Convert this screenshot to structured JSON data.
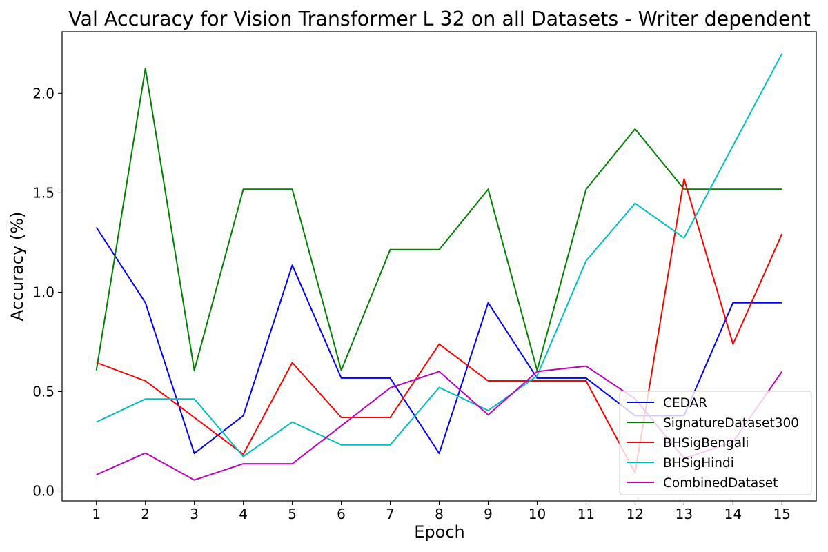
{
  "chart_data": {
    "type": "line",
    "title": "Val Accuracy for Vision Transformer L 32 on all Datasets - Writer dependent",
    "xlabel": "Epoch",
    "ylabel": "Accuracy (%)",
    "x": [
      1,
      2,
      3,
      4,
      5,
      6,
      7,
      8,
      9,
      10,
      11,
      12,
      13,
      14,
      15
    ],
    "xlim": [
      0.3,
      15.7
    ],
    "ylim": [
      -0.05,
      2.31
    ],
    "yticks": [
      0.0,
      0.5,
      1.0,
      1.5,
      2.0
    ],
    "ytick_labels": [
      "0.0",
      "0.5",
      "1.0",
      "1.5",
      "2.0"
    ],
    "xtick_labels": [
      "1",
      "2",
      "3",
      "4",
      "5",
      "6",
      "7",
      "8",
      "9",
      "10",
      "11",
      "12",
      "13",
      "14",
      "15"
    ],
    "grid": false,
    "legend_position": "bottom-right",
    "series": [
      {
        "name": "CEDAR",
        "color": "#0000ff",
        "values": [
          1.326,
          0.947,
          0.189,
          0.379,
          1.136,
          0.568,
          0.568,
          0.189,
          0.947,
          0.568,
          0.568,
          0.379,
          0.379,
          0.947,
          0.947
        ]
      },
      {
        "name": "SignatureDataset300",
        "color": "#008000",
        "values": [
          0.607,
          2.125,
          0.607,
          1.518,
          1.518,
          0.607,
          1.214,
          1.214,
          1.518,
          0.607,
          1.518,
          1.821,
          1.518,
          1.518,
          1.518
        ]
      },
      {
        "name": "BHSigBengali",
        "color": "#ff0000",
        "values": [
          0.646,
          0.554,
          0.37,
          0.185,
          0.646,
          0.37,
          0.37,
          0.739,
          0.554,
          0.554,
          0.554,
          0.092,
          1.57,
          0.739,
          1.293
        ]
      },
      {
        "name": "BHSigHindi",
        "color": "#00bfbf",
        "values": [
          0.347,
          0.463,
          0.463,
          0.174,
          0.347,
          0.232,
          0.232,
          0.521,
          0.405,
          0.579,
          1.158,
          1.447,
          1.273,
          1.737,
          2.2
        ]
      },
      {
        "name": "CombinedDataset",
        "color": "#bf00bf",
        "values": [
          0.082,
          0.191,
          0.055,
          0.137,
          0.137,
          0.328,
          0.519,
          0.601,
          0.383,
          0.601,
          0.628,
          0.464,
          0.164,
          0.246,
          0.601
        ]
      }
    ]
  }
}
